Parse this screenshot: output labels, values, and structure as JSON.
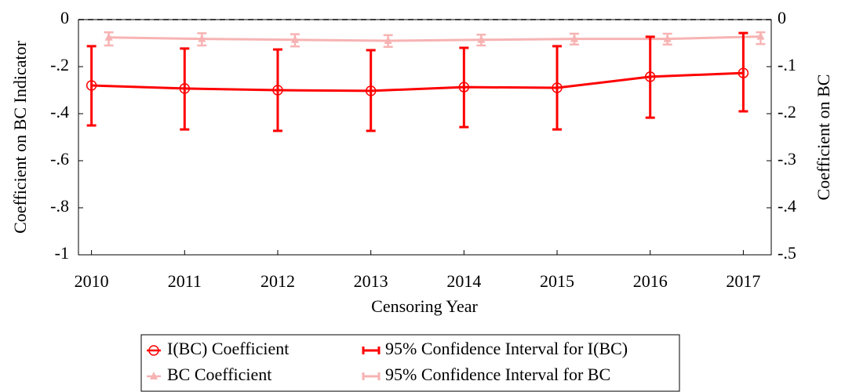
{
  "chart_data": {
    "type": "line",
    "x_label": "Censoring Year",
    "y_label": "Coefficient on BC Indicator",
    "y2_label": "Coefficient on BC",
    "x": [
      2010,
      2011,
      2012,
      2013,
      2014,
      2015,
      2016,
      2017
    ],
    "xlim": [
      2009.86,
      2017.3
    ],
    "xticks": [
      2010,
      2011,
      2012,
      2013,
      2014,
      2015,
      2016,
      2017
    ],
    "ylim": [
      -1,
      0
    ],
    "yticks": [
      {
        "value": 0,
        "label": "0"
      },
      {
        "value": -0.2,
        "label": "-.2"
      },
      {
        "value": -0.4,
        "label": "-.4"
      },
      {
        "value": -0.6,
        "label": "-.6"
      },
      {
        "value": -0.8,
        "label": "-.8"
      },
      {
        "value": -1,
        "label": "-1"
      }
    ],
    "y2lim": [
      -0.5,
      0
    ],
    "y2ticks": [
      {
        "value": 0,
        "label": "0"
      },
      {
        "value": -0.1,
        "label": "-.1"
      },
      {
        "value": -0.2,
        "label": "-.2"
      },
      {
        "value": -0.3,
        "label": "-.3"
      },
      {
        "value": -0.4,
        "label": "-.4"
      },
      {
        "value": -0.5,
        "label": "-.5"
      }
    ],
    "reference_line": 0,
    "series": [
      {
        "name": "I(BC) Coefficient",
        "ci_name": "95% Confidence Interval for I(BC)",
        "color": "#ff0000",
        "marker": "circle",
        "axis": "y",
        "values": [
          -0.28,
          -0.293,
          -0.3,
          -0.303,
          -0.287,
          -0.29,
          -0.243,
          -0.227
        ],
        "lower": [
          -0.45,
          -0.467,
          -0.473,
          -0.473,
          -0.457,
          -0.467,
          -0.417,
          -0.39
        ],
        "upper": [
          -0.113,
          -0.123,
          -0.127,
          -0.13,
          -0.12,
          -0.113,
          -0.073,
          -0.057
        ]
      },
      {
        "name": "BC Coefficient",
        "ci_name": "95% Confidence Interval for BC",
        "color": "#f7b3b3",
        "marker": "triangle",
        "axis": "y2",
        "values": [
          -0.038,
          -0.041,
          -0.043,
          -0.045,
          -0.043,
          -0.041,
          -0.041,
          -0.036
        ],
        "lower": [
          -0.055,
          -0.055,
          -0.057,
          -0.058,
          -0.055,
          -0.053,
          -0.053,
          -0.052
        ],
        "upper": [
          -0.027,
          -0.029,
          -0.031,
          -0.033,
          -0.032,
          -0.03,
          -0.03,
          -0.027
        ]
      }
    ]
  }
}
